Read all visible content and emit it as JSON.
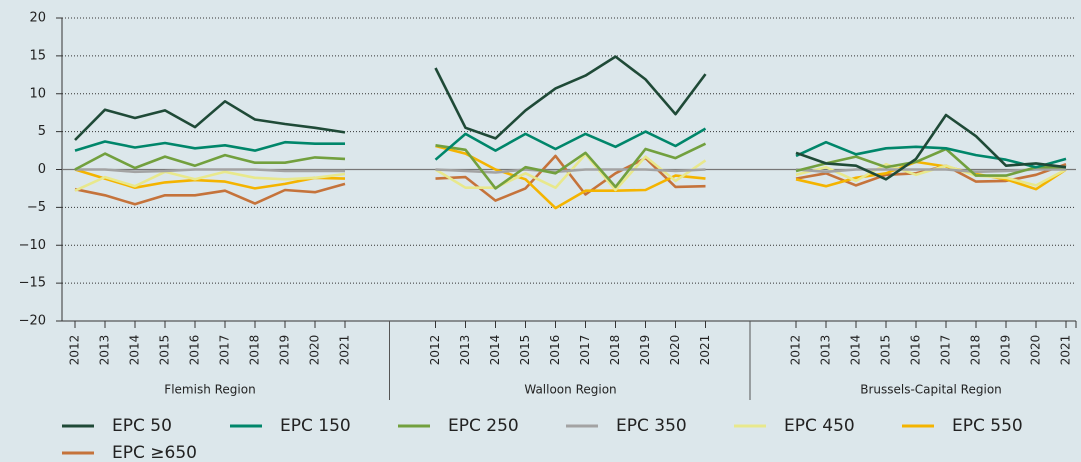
{
  "chart_data": {
    "type": "line",
    "groups": [
      "Flemish Region",
      "Walloon Region",
      "Brussels-Capital Region"
    ],
    "categories": [
      "2012",
      "2013",
      "2014",
      "2015",
      "2016",
      "2017",
      "2018",
      "2019",
      "2020",
      "2021",
      "2012",
      "2013",
      "2014",
      "2015",
      "2016",
      "2017",
      "2018",
      "2019",
      "2020",
      "2021",
      "2012",
      "2013",
      "2014",
      "2015",
      "2016",
      "2017",
      "2018",
      "2019",
      "2020",
      "2021"
    ],
    "ylim": [
      -20,
      20
    ],
    "yticks": [
      {
        "value": -20,
        "label": "−20"
      },
      {
        "value": -15,
        "label": "−15"
      },
      {
        "value": -10,
        "label": "−10"
      },
      {
        "value": -5,
        "label": "−5"
      },
      0,
      5,
      10,
      15,
      20
    ],
    "grid": true,
    "legend": "bottom",
    "series": [
      {
        "name": "EPC 50",
        "color": "#1f4a37",
        "values": [
          3.9,
          7.9,
          6.8,
          7.8,
          5.6,
          9.0,
          6.6,
          6.0,
          5.5,
          4.9,
          13.4,
          5.5,
          4.1,
          7.8,
          10.7,
          12.4,
          14.9,
          11.9,
          7.3,
          12.6,
          2.2,
          0.8,
          0.5,
          -1.3,
          1.4,
          7.2,
          4.4,
          0.5,
          0.8,
          0.3
        ]
      },
      {
        "name": "EPC 150",
        "color": "#00866a",
        "values": [
          2.5,
          3.7,
          2.9,
          3.5,
          2.8,
          3.2,
          2.5,
          3.6,
          3.4,
          3.4,
          1.3,
          4.7,
          2.5,
          4.7,
          2.7,
          4.7,
          3.0,
          5.0,
          3.1,
          5.4,
          1.8,
          3.6,
          2.0,
          2.8,
          3.0,
          2.8,
          1.9,
          1.3,
          0.3,
          1.4
        ]
      },
      {
        "name": "EPC 250",
        "color": "#72a03e",
        "values": [
          0,
          2.1,
          0.2,
          1.7,
          0.5,
          1.9,
          0.9,
          0.9,
          1.6,
          1.4,
          3.2,
          2.6,
          -2.5,
          0.3,
          -0.5,
          2.2,
          -2.3,
          2.7,
          1.5,
          3.4,
          -0.2,
          0.8,
          1.7,
          0.3,
          1.0,
          2.7,
          -0.8,
          -0.8,
          0.3,
          0.3
        ]
      },
      {
        "name": "EPC 350",
        "color": "#a3a3a3",
        "values": [
          0,
          0,
          -0.3,
          -0.2,
          0,
          0,
          0,
          -0.2,
          -0.2,
          -0.2,
          0,
          -0.2,
          -0.4,
          0,
          -0.3,
          0,
          0,
          0,
          -0.2,
          0,
          0,
          -0.3,
          0,
          0,
          0,
          0,
          -0.3,
          -0.2,
          0,
          0
        ]
      },
      {
        "name": "EPC 450",
        "color": "#e8e88c",
        "values": [
          -2.8,
          -1,
          -2.2,
          -0.3,
          -1.3,
          -0.3,
          -1.1,
          -1.3,
          -1.1,
          -0.6,
          0,
          -2.4,
          -2.4,
          -0.5,
          -2.4,
          2.0,
          -2.7,
          1.7,
          -1.5,
          1.2,
          -0.7,
          0.3,
          -1.5,
          0.7,
          -0.7,
          0.5,
          -0.8,
          -1.1,
          -2.1,
          0
        ]
      },
      {
        "name": "EPC 550",
        "color": "#f4b400",
        "values": [
          0,
          -1.2,
          -2.4,
          -1.7,
          -1.4,
          -1.6,
          -2.5,
          -1.9,
          -1.1,
          -1.2,
          3.1,
          2.1,
          0,
          -1.3,
          -5.1,
          -2.8,
          -2.8,
          -2.7,
          -0.8,
          -1.2,
          -1.3,
          -2.2,
          -1.1,
          -0.5,
          1.0,
          0.4,
          -0.6,
          -1.3,
          -2.6,
          0
        ]
      },
      {
        "name": "EPC ≥650",
        "color": "#c5733b",
        "values": [
          -2.6,
          -3.4,
          -4.6,
          -3.4,
          -3.4,
          -2.8,
          -4.5,
          -2.7,
          -3.0,
          -1.9,
          -1.2,
          -1.0,
          -4.1,
          -2.5,
          1.8,
          -3.3,
          -0.5,
          1.5,
          -2.3,
          -2.2,
          -1.2,
          -0.5,
          -2.1,
          -0.7,
          -0.5,
          0.5,
          -1.6,
          -1.5,
          -0.7,
          0.7
        ]
      }
    ]
  }
}
